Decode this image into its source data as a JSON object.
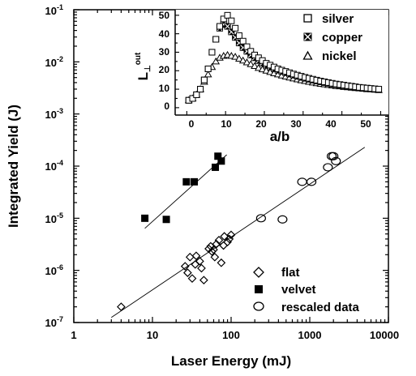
{
  "chart_data": [
    {
      "type": "scatter",
      "title": "",
      "xlabel": "Laser Energy (mJ)",
      "ylabel": "Integrated Yield (J)",
      "xscale": "log",
      "yscale": "log",
      "xlim": [
        1,
        10000
      ],
      "ylim": [
        1e-07,
        0.1
      ],
      "x_tick_labels": [
        "1",
        "10",
        "100",
        "1000",
        "10000"
      ],
      "y_tick_labels": [
        {
          "base": "10",
          "exp": "-7"
        },
        {
          "base": "10",
          "exp": "-6"
        },
        {
          "base": "10",
          "exp": "-5"
        },
        {
          "base": "10",
          "exp": "-4"
        },
        {
          "base": "10",
          "exp": "-3"
        },
        {
          "base": "10",
          "exp": "-2"
        },
        {
          "base": "10",
          "exp": "-1"
        }
      ],
      "legend_position": "bottom-right",
      "series": [
        {
          "name": "flat",
          "marker": "open-diamond",
          "x": [
            4,
            26,
            28,
            30,
            32,
            35,
            36,
            40,
            42,
            45,
            52,
            55,
            57,
            60,
            62,
            65,
            70,
            75,
            80,
            82,
            90,
            95,
            100
          ],
          "y": [
            2e-07,
            1.2e-06,
            9e-07,
            1.8e-06,
            7e-07,
            1.3e-06,
            1.9e-06,
            1.5e-06,
            1.1e-06,
            6.5e-07,
            2.6e-06,
            2.9e-06,
            2.3e-06,
            2.5e-06,
            1.8e-06,
            3.2e-06,
            3.8e-06,
            1.4e-06,
            3e-06,
            4.5e-06,
            3.5e-06,
            4e-06,
            4.8e-06
          ]
        },
        {
          "name": "velvet",
          "marker": "filled-square",
          "x": [
            8,
            15,
            27,
            34,
            63,
            68,
            75
          ],
          "y": [
            1e-05,
            9.5e-06,
            5e-05,
            5e-05,
            9.5e-05,
            0.000155,
            0.000125
          ]
        },
        {
          "name": "rescaled data",
          "marker": "open-circle",
          "x": [
            240,
            450,
            800,
            1050,
            1700,
            1900,
            2000,
            2150
          ],
          "y": [
            1e-05,
            9.5e-06,
            5e-05,
            5e-05,
            9.5e-05,
            0.000155,
            0.000155,
            0.000125
          ]
        }
      ],
      "fit_lines": [
        {
          "x": [
            3,
            5000
          ],
          "y": [
            1.25e-07,
            0.00023
          ]
        },
        {
          "x": [
            8,
            88
          ],
          "y": [
            6.4e-06,
            0.000165
          ]
        }
      ]
    },
    {
      "type": "scatter",
      "title": "",
      "xlabel": "a/b",
      "ylabel": "L⊥out",
      "ylabel_main": "L",
      "ylabel_sub": "⊥",
      "ylabel_sup": "out",
      "xlim": [
        -3,
        52
      ],
      "ylim": [
        -4,
        53
      ],
      "x_tick_labels": [
        "0",
        "10",
        "20",
        "30",
        "40",
        "50"
      ],
      "y_tick_labels": [
        "0",
        "10",
        "20",
        "30",
        "40",
        "50"
      ],
      "legend_position": "top-right",
      "series": [
        {
          "name": "silver",
          "marker": "open-square",
          "x": [
            0.5,
            1.5,
            2.5,
            3.5,
            4.5,
            5.5,
            6.5,
            7.5,
            8.5,
            9.5,
            10.5,
            11.5,
            12.5,
            13.5,
            14.5,
            15.5,
            16.5,
            17.5,
            18.5,
            19.5,
            20.5,
            21.5,
            22.5,
            23.5,
            24.5,
            25.5,
            26.5,
            27.5,
            28.5,
            29.5,
            30.5,
            31.5,
            32.5,
            33.5,
            34.5,
            35.5,
            36.5,
            37.5,
            38.5,
            39.5,
            40.5,
            41.5,
            42.5,
            43.5,
            44.5,
            45.5,
            46.5,
            47.5,
            48.5,
            49.5
          ],
          "y": [
            4,
            5,
            7,
            10,
            15,
            21,
            30,
            37,
            44,
            48,
            50,
            47,
            43,
            39,
            36,
            33,
            30.5,
            28.5,
            27,
            25.5,
            24,
            23,
            22,
            21,
            20.3,
            19.6,
            18.9,
            18.2,
            17.6,
            17,
            16.4,
            15.9,
            15.4,
            14.9,
            14.4,
            14,
            13.6,
            13.2,
            12.8,
            12.5,
            12.2,
            11.9,
            11.6,
            11.3,
            11,
            10.8,
            10.6,
            10.4,
            10.2,
            10
          ]
        },
        {
          "name": "copper",
          "marker": "crossed-square",
          "x": [
            0.5,
            1.5,
            2.5,
            3.5,
            4.5,
            5.5,
            6.5,
            7.5,
            8.5,
            9.5,
            10.5,
            11.5,
            12.5,
            13.5,
            14.5,
            15.5,
            16.5,
            17.5,
            18.5,
            19.5,
            20.5,
            21.5,
            22.5,
            23.5,
            24.5,
            25.5,
            26.5,
            27.5,
            28.5,
            29.5,
            30.5,
            31.5,
            32.5,
            33.5,
            34.5,
            35.5,
            36.5,
            37.5,
            38.5,
            39.5,
            40.5,
            41.5,
            42.5,
            43.5,
            44.5,
            45.5,
            46.5,
            47.5,
            48.5,
            49.5
          ],
          "y": [
            4,
            5,
            7,
            10,
            15,
            21,
            30,
            37,
            43,
            45,
            44,
            41,
            38,
            35,
            32.5,
            30.5,
            28.5,
            27,
            25.5,
            24.2,
            23,
            22,
            21.1,
            20.3,
            19.6,
            18.9,
            18.2,
            17.6,
            17,
            16.4,
            15.9,
            15.4,
            14.9,
            14.4,
            14,
            13.6,
            13.2,
            12.8,
            12.5,
            12.2,
            11.9,
            11.6,
            11.3,
            11,
            10.8,
            10.6,
            10.4,
            10.2,
            10,
            9.8
          ]
        },
        {
          "name": "nickel",
          "marker": "open-triangle",
          "x": [
            0.5,
            1.5,
            2.5,
            3.5,
            4.5,
            5.5,
            6.5,
            7.5,
            8.5,
            9.5,
            10.5,
            11.5,
            12.5,
            13.5,
            14.5,
            15.5,
            16.5,
            17.5,
            18.5,
            19.5,
            20.5,
            21.5,
            22.5,
            23.5,
            24.5,
            25.5,
            26.5,
            27.5,
            28.5,
            29.5,
            30.5,
            31.5,
            32.5,
            33.5,
            34.5,
            35.5,
            36.5,
            37.5,
            38.5,
            39.5,
            40.5,
            41.5,
            42.5,
            43.5,
            44.5,
            45.5,
            46.5,
            47.5,
            48.5,
            49.5
          ],
          "y": [
            4,
            5,
            7,
            10,
            14,
            18,
            22,
            25,
            27,
            28,
            28.5,
            28,
            27.5,
            26.5,
            25.5,
            24.5,
            23.5,
            22.5,
            21.5,
            20.7,
            20,
            19.3,
            18.6,
            18,
            17.4,
            16.8,
            16.3,
            15.8,
            15.3,
            14.8,
            14.4,
            14,
            13.6,
            13.2,
            12.9,
            12.6,
            12.3,
            12,
            11.7,
            11.5,
            11.2,
            11,
            10.8,
            10.6,
            10.4,
            10.2,
            10,
            9.9,
            9.7,
            9.5
          ]
        }
      ]
    }
  ]
}
